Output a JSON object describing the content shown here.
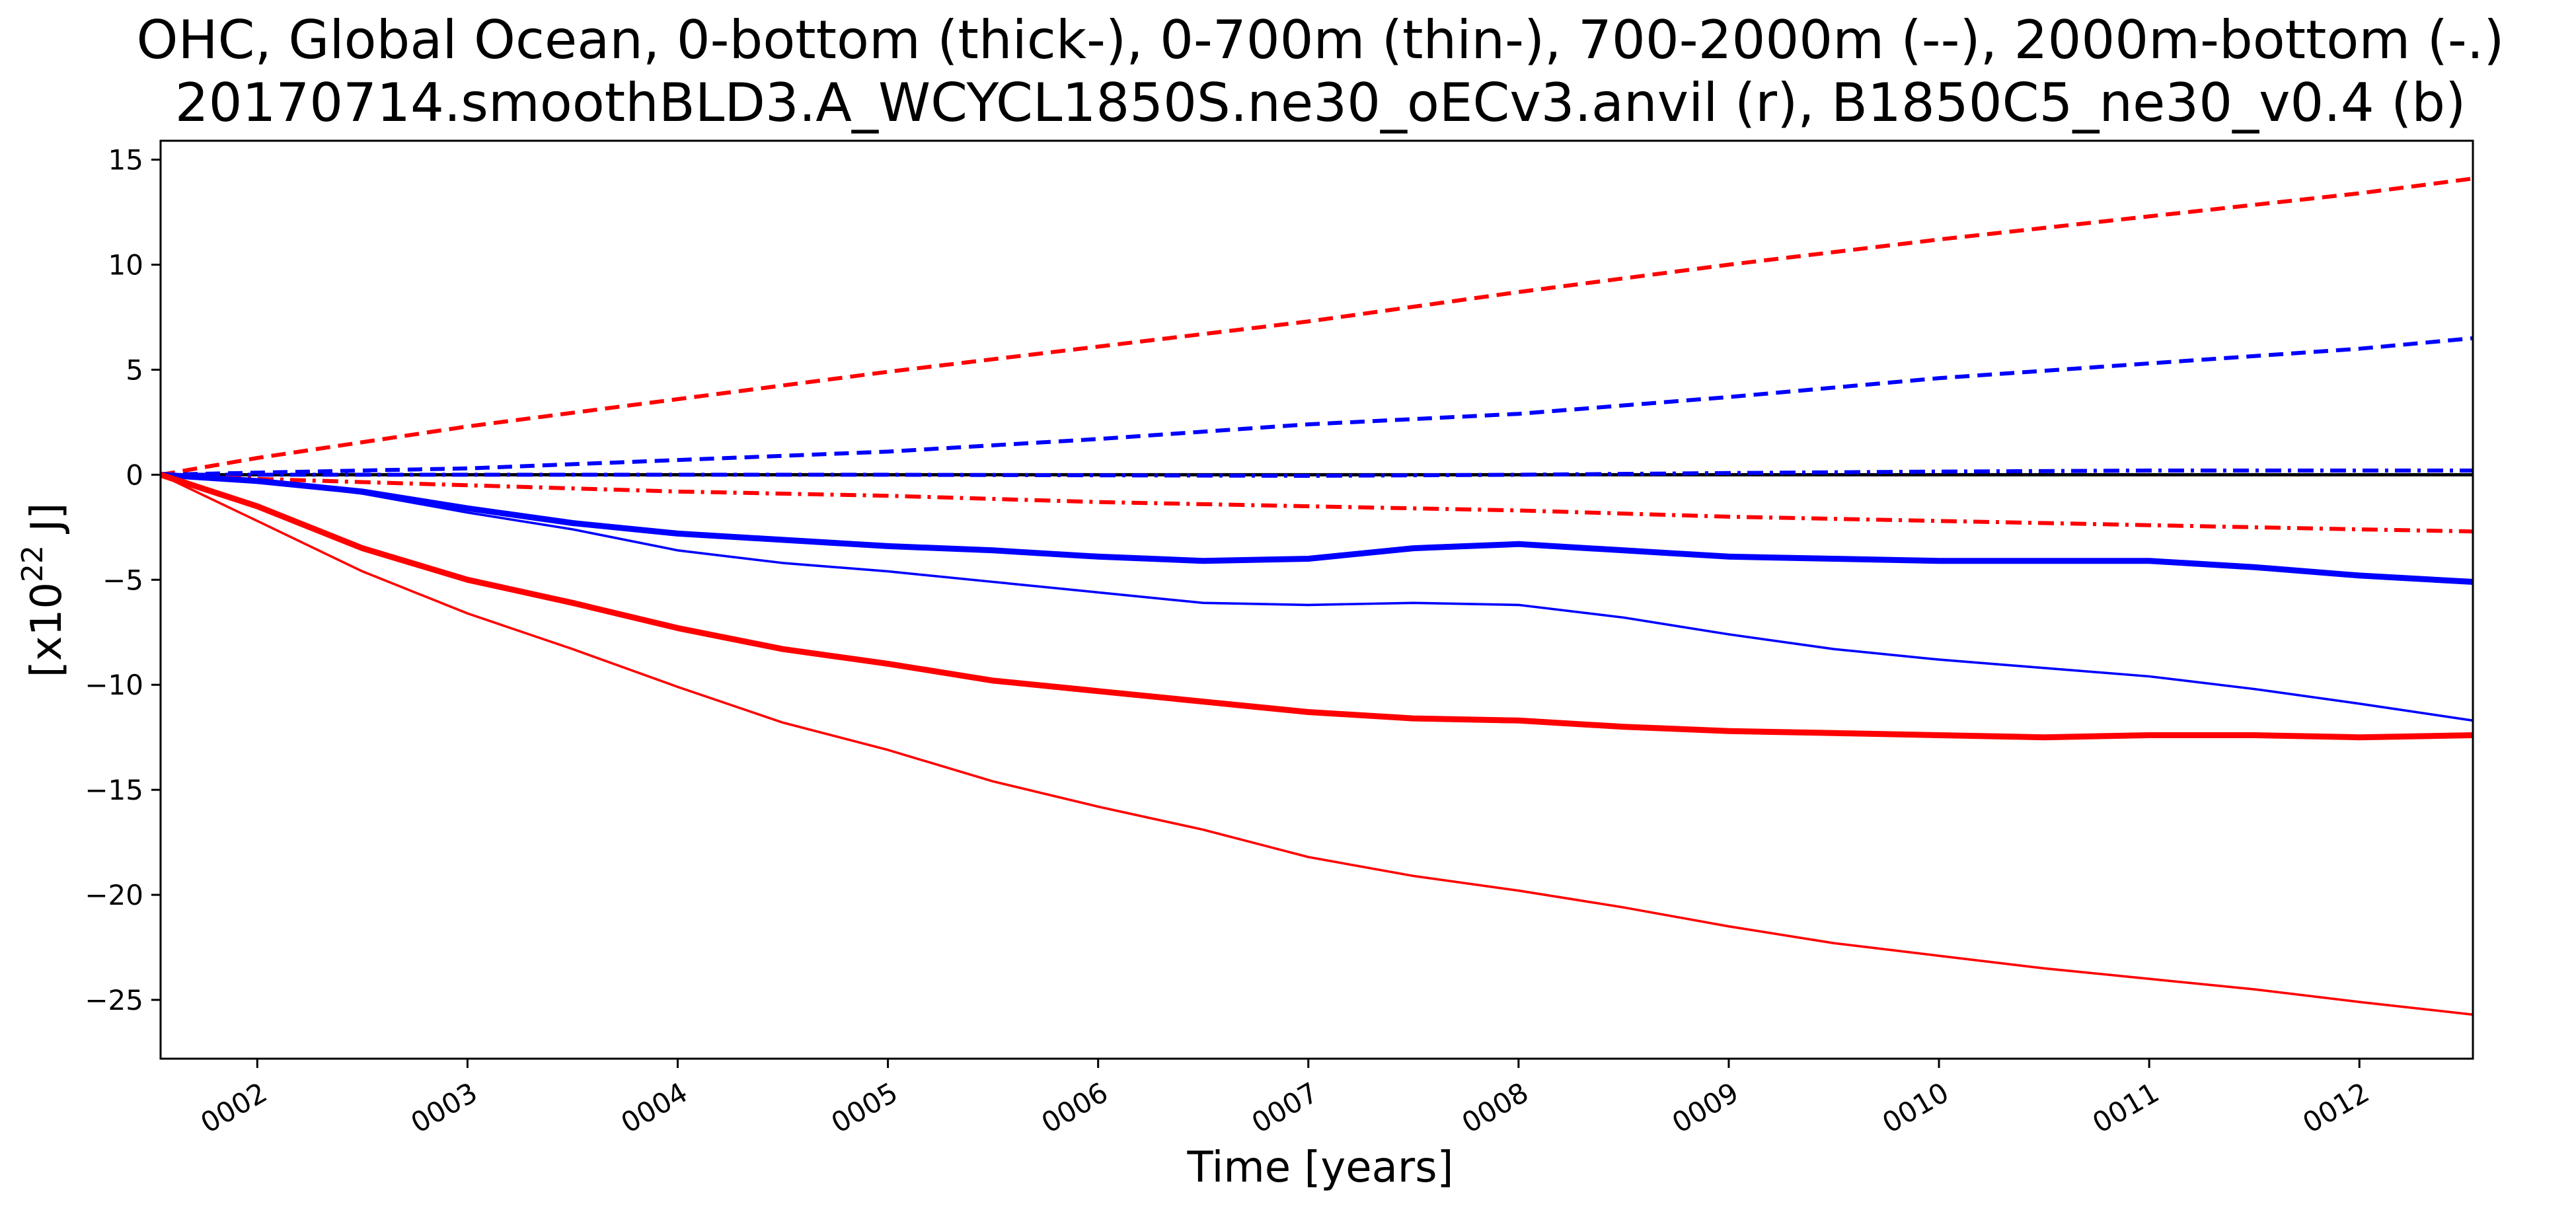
{
  "chart_data": {
    "type": "line",
    "title_line1": "OHC, Global Ocean, 0-bottom (thick-), 0-700m (thin-), 700-2000m (--), 2000m-bottom (-.)",
    "title_line2": "20170714.smoothBLD3.A_WCYCL1850S.ne30_oECv3.anvil (r), B1850C5_ne30_v0.4 (b)",
    "xlabel": "Time [years]",
    "ylabel": "[x10",
    "ylabel_exp": "22",
    "ylabel_unit": " J]",
    "xlim": [
      1.54,
      12.54
    ],
    "ylim": [
      -27.8,
      15.9
    ],
    "xticks": [
      2,
      3,
      4,
      5,
      6,
      7,
      8,
      9,
      10,
      11,
      12
    ],
    "xtick_labels": [
      "0002",
      "0003",
      "0004",
      "0005",
      "0006",
      "0007",
      "0008",
      "0009",
      "0010",
      "0011",
      "0012"
    ],
    "yticks": [
      15,
      10,
      5,
      0,
      -5,
      -10,
      -15,
      -20,
      -25
    ],
    "ytick_labels": [
      "15",
      "10",
      "5",
      "0",
      "−5",
      "−10",
      "−15",
      "−20",
      "−25"
    ],
    "zero_line_color": "#000000",
    "series": [
      {
        "name": "r 700-2000m",
        "color": "#ff0000",
        "style": "dashed",
        "weight": "medium",
        "x": [
          1.54,
          2,
          3,
          4,
          5,
          6,
          7,
          8,
          9,
          10,
          11,
          12,
          12.54
        ],
        "y": [
          0,
          0.8,
          2.3,
          3.6,
          4.9,
          6.1,
          7.3,
          8.7,
          10.0,
          11.2,
          12.3,
          13.4,
          14.1
        ]
      },
      {
        "name": "b 700-2000m",
        "color": "#0000ff",
        "style": "dashed",
        "weight": "medium",
        "x": [
          1.54,
          2,
          3,
          4,
          5,
          6,
          7,
          8,
          9,
          10,
          11,
          12,
          12.54
        ],
        "y": [
          0,
          0.1,
          0.3,
          0.7,
          1.1,
          1.7,
          2.4,
          2.9,
          3.7,
          4.6,
          5.3,
          6.0,
          6.5
        ]
      },
      {
        "name": "b 2000m-bottom",
        "color": "#0000ff",
        "style": "dashdot",
        "weight": "medium",
        "x": [
          1.54,
          3,
          5,
          7,
          8,
          9,
          10,
          11,
          12,
          12.54
        ],
        "y": [
          0,
          0.0,
          0.0,
          -0.05,
          0.0,
          0.08,
          0.15,
          0.2,
          0.2,
          0.2
        ]
      },
      {
        "name": "r 2000m-bottom",
        "color": "#ff0000",
        "style": "dashdot",
        "weight": "medium",
        "x": [
          1.54,
          2,
          3,
          4,
          5,
          6,
          7,
          8,
          9,
          10,
          11,
          12,
          12.54
        ],
        "y": [
          0,
          -0.2,
          -0.5,
          -0.8,
          -1.0,
          -1.3,
          -1.5,
          -1.7,
          -2.0,
          -2.2,
          -2.4,
          -2.6,
          -2.7
        ]
      },
      {
        "name": "b 0-bottom",
        "color": "#0000ff",
        "style": "solid",
        "weight": "thick",
        "x": [
          1.54,
          2,
          2.5,
          3,
          3.5,
          4,
          4.5,
          5,
          5.5,
          6,
          6.5,
          7,
          7.5,
          8,
          8.5,
          9,
          9.5,
          10,
          10.5,
          11,
          11.5,
          12,
          12.54
        ],
        "y": [
          0,
          -0.3,
          -0.8,
          -1.6,
          -2.3,
          -2.8,
          -3.1,
          -3.4,
          -3.6,
          -3.9,
          -4.1,
          -4.0,
          -3.5,
          -3.3,
          -3.6,
          -3.9,
          -4.0,
          -4.1,
          -4.1,
          -4.1,
          -4.4,
          -4.8,
          -5.1
        ]
      },
      {
        "name": "b 0-700m",
        "color": "#0000ff",
        "style": "solid",
        "weight": "thin",
        "x": [
          1.54,
          2,
          2.5,
          3,
          3.5,
          4,
          4.5,
          5,
          5.5,
          6,
          6.5,
          7,
          7.5,
          8,
          8.5,
          9,
          9.5,
          10,
          10.5,
          11,
          11.5,
          12,
          12.54
        ],
        "y": [
          0,
          -0.3,
          -0.9,
          -1.8,
          -2.6,
          -3.6,
          -4.2,
          -4.6,
          -5.1,
          -5.6,
          -6.1,
          -6.2,
          -6.1,
          -6.2,
          -6.8,
          -7.6,
          -8.3,
          -8.8,
          -9.2,
          -9.6,
          -10.2,
          -10.9,
          -11.7
        ]
      },
      {
        "name": "r 0-bottom",
        "color": "#ff0000",
        "style": "solid",
        "weight": "thick",
        "x": [
          1.54,
          2,
          2.5,
          3,
          3.5,
          4,
          4.5,
          5,
          5.5,
          6,
          6.5,
          7,
          7.5,
          8,
          8.5,
          9,
          9.5,
          10,
          10.5,
          11,
          11.5,
          12,
          12.54
        ],
        "y": [
          0,
          -1.5,
          -3.5,
          -5.0,
          -6.1,
          -7.3,
          -8.3,
          -9.0,
          -9.8,
          -10.3,
          -10.8,
          -11.3,
          -11.6,
          -11.7,
          -12.0,
          -12.2,
          -12.3,
          -12.4,
          -12.5,
          -12.4,
          -12.4,
          -12.5,
          -12.4
        ]
      },
      {
        "name": "r 0-700m",
        "color": "#ff0000",
        "style": "solid",
        "weight": "thin",
        "x": [
          1.54,
          2,
          2.5,
          3,
          3.5,
          4,
          4.5,
          5,
          5.5,
          6,
          6.5,
          7,
          7.5,
          8,
          8.5,
          9,
          9.5,
          10,
          10.5,
          11,
          11.5,
          12,
          12.54
        ],
        "y": [
          0,
          -2.2,
          -4.6,
          -6.6,
          -8.3,
          -10.1,
          -11.8,
          -13.1,
          -14.6,
          -15.8,
          -16.9,
          -18.2,
          -19.1,
          -19.8,
          -20.6,
          -21.5,
          -22.3,
          -22.9,
          -23.5,
          -24.0,
          -24.5,
          -25.1,
          -25.7
        ]
      }
    ]
  }
}
